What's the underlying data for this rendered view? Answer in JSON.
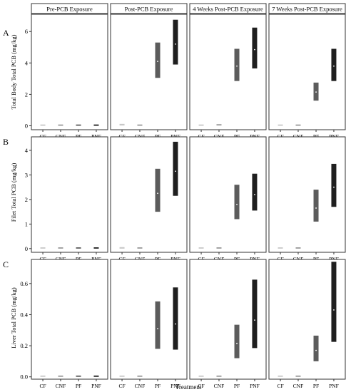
{
  "figure": {
    "xlabel": "Treatment",
    "panels": [
      "Pre-PCB Exposure",
      "Post-PCB Exposure",
      "4 Weeks Post-PCB Exposure",
      "7 Weeks Post-PCB Exposure"
    ],
    "categories": [
      "CF",
      "CNF",
      "PF",
      "PNF"
    ],
    "colors": {
      "CF": "#c8c8c8",
      "CNF": "#9a9a9a",
      "PF": "#5c5c5c",
      "PNF": "#1f1f1f"
    }
  },
  "chart_data": [
    {
      "type": "bar",
      "letter": "A",
      "ylabel": "Total Body Total PCB (mg/kg)",
      "ylim": [
        -0.25,
        7.1
      ],
      "yticks": [
        0,
        2,
        4,
        6
      ],
      "series": [
        {
          "panel": "Pre-PCB Exposure",
          "low": [
            0.0,
            0.0,
            0.0,
            0.0
          ],
          "high": [
            0.03,
            0.03,
            0.04,
            0.05
          ],
          "mean": [
            0.015,
            0.015,
            0.02,
            0.025
          ]
        },
        {
          "panel": "Post-PCB Exposure",
          "low": [
            0.02,
            0.0,
            3.05,
            3.9
          ],
          "high": [
            0.12,
            0.04,
            5.3,
            6.75
          ],
          "mean": [
            0.07,
            0.02,
            4.1,
            5.2
          ]
        },
        {
          "panel": "4 Weeks Post-PCB Exposure",
          "low": [
            0.0,
            0.02,
            2.85,
            3.65
          ],
          "high": [
            0.04,
            0.08,
            4.9,
            6.25
          ],
          "mean": [
            0.02,
            0.05,
            3.8,
            4.85
          ]
        },
        {
          "panel": "7 Weeks Post-PCB Exposure",
          "low": [
            0.0,
            0.0,
            1.6,
            2.85
          ],
          "high": [
            0.04,
            0.05,
            2.75,
            4.9
          ],
          "mean": [
            0.02,
            0.025,
            2.15,
            3.8
          ]
        }
      ]
    },
    {
      "type": "bar",
      "letter": "B",
      "ylabel": "Filet Total PCB (mg/kg)",
      "ylim": [
        -0.15,
        4.55
      ],
      "yticks": [
        0,
        1,
        2,
        3,
        4
      ],
      "series": [
        {
          "panel": "Pre-PCB Exposure",
          "low": [
            0.0,
            0.0,
            0.0,
            0.0
          ],
          "high": [
            0.03,
            0.03,
            0.03,
            0.04
          ],
          "mean": [
            0.015,
            0.015,
            0.015,
            0.02
          ]
        },
        {
          "panel": "Post-PCB Exposure",
          "low": [
            0.0,
            0.0,
            1.5,
            2.15
          ],
          "high": [
            0.06,
            0.05,
            3.25,
            4.35
          ],
          "mean": [
            0.03,
            0.025,
            2.25,
            3.15
          ]
        },
        {
          "panel": "4 Weeks Post-PCB Exposure",
          "low": [
            0.0,
            0.0,
            1.2,
            1.55
          ],
          "high": [
            0.05,
            0.05,
            2.6,
            3.05
          ],
          "mean": [
            0.025,
            0.025,
            1.8,
            2.2
          ]
        },
        {
          "panel": "7 Weeks Post-PCB Exposure",
          "low": [
            0.0,
            0.0,
            1.1,
            1.7
          ],
          "high": [
            0.03,
            0.05,
            2.4,
            3.45
          ],
          "mean": [
            0.015,
            0.025,
            1.65,
            2.5
          ]
        }
      ]
    },
    {
      "type": "bar",
      "letter": "C",
      "ylabel": "Liver Total PCB (mg/kg)",
      "ylim": [
        -0.015,
        0.755
      ],
      "yticks": [
        0.0,
        0.2,
        0.4,
        0.6
      ],
      "yticklabels": [
        "0.0",
        "0.2",
        "0.4",
        "0.6"
      ],
      "series": [
        {
          "panel": "Pre-PCB Exposure",
          "low": [
            0.0,
            0.0,
            0.0,
            0.0
          ],
          "high": [
            0.005,
            0.005,
            0.005,
            0.006
          ],
          "mean": [
            0.003,
            0.003,
            0.003,
            0.003
          ]
        },
        {
          "panel": "Post-PCB Exposure",
          "low": [
            0.0,
            0.0,
            0.18,
            0.175
          ],
          "high": [
            0.005,
            0.005,
            0.485,
            0.575
          ],
          "mean": [
            0.003,
            0.003,
            0.31,
            0.34
          ]
        },
        {
          "panel": "4 Weeks Post-PCB Exposure",
          "low": [
            0.0,
            0.0,
            0.12,
            0.185
          ],
          "high": [
            0.005,
            0.006,
            0.335,
            0.625
          ],
          "mean": [
            0.003,
            0.003,
            0.215,
            0.365
          ]
        },
        {
          "panel": "7 Weeks Post-PCB Exposure",
          "low": [
            0.0,
            0.0,
            0.1,
            0.225
          ],
          "high": [
            0.005,
            0.006,
            0.265,
            0.74
          ],
          "mean": [
            0.003,
            0.003,
            0.17,
            0.43
          ]
        }
      ]
    }
  ]
}
